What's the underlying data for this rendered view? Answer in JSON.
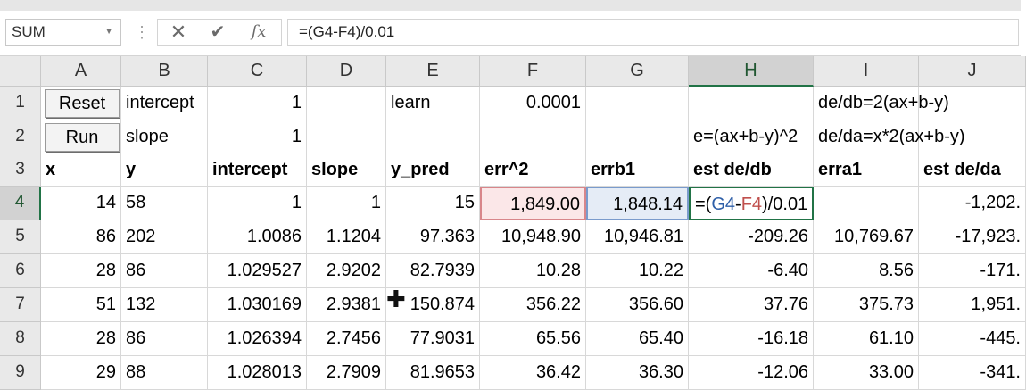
{
  "name_box": "SUM",
  "formula_bar": {
    "cancel_glyph": "✕",
    "enter_glyph": "✔",
    "fx_label": "fx",
    "formula": "=(G4-F4)/0.01"
  },
  "columns": [
    "A",
    "B",
    "C",
    "D",
    "E",
    "F",
    "G",
    "H",
    "I",
    "J"
  ],
  "rows": [
    "1",
    "2",
    "3",
    "4",
    "5",
    "6",
    "7",
    "8",
    "9"
  ],
  "buttons": {
    "reset": "Reset",
    "run": "Run"
  },
  "row1": {
    "B": "intercept",
    "C": "1",
    "E": "learn",
    "F": "0.0001",
    "I": "de/db=2(ax+b-y)"
  },
  "row2": {
    "B": "slope",
    "C": "1",
    "H": "e=(ax+b-y)^2",
    "I": "de/da=x*2(ax+b-y)"
  },
  "row3": {
    "A": "x",
    "B": "y",
    "C": "intercept",
    "D": "slope",
    "E": "y_pred",
    "F": "err^2",
    "G": "errb1",
    "H": "est de/db",
    "I": "erra1",
    "J": "est de/da"
  },
  "active_cell_formula": {
    "open": "=(",
    "g": "G4",
    "minus": "-",
    "f": "F4",
    "rest": ")/0.01"
  },
  "table": [
    [
      "14",
      "58",
      "1",
      "1",
      "15",
      "1,849.00",
      "1,848.14",
      "",
      "",
      "-1,202."
    ],
    [
      "86",
      "202",
      "1.0086",
      "1.1204",
      "97.363",
      "10,948.90",
      "10,946.81",
      "-209.26",
      "10,769.67",
      "-17,923."
    ],
    [
      "28",
      "86",
      "1.029527",
      "2.9202",
      "82.7939",
      "10.28",
      "10.22",
      "-6.40",
      "8.56",
      "-171."
    ],
    [
      "51",
      "132",
      "1.030169",
      "2.9381",
      "150.874",
      "356.22",
      "356.60",
      "37.76",
      "375.73",
      "1,951."
    ],
    [
      "28",
      "86",
      "1.026394",
      "2.7456",
      "77.9031",
      "65.56",
      "65.40",
      "-16.18",
      "61.10",
      "-445."
    ],
    [
      "29",
      "88",
      "1.028013",
      "2.7909",
      "81.9653",
      "36.42",
      "36.30",
      "-12.06",
      "33.00",
      "-341."
    ]
  ]
}
